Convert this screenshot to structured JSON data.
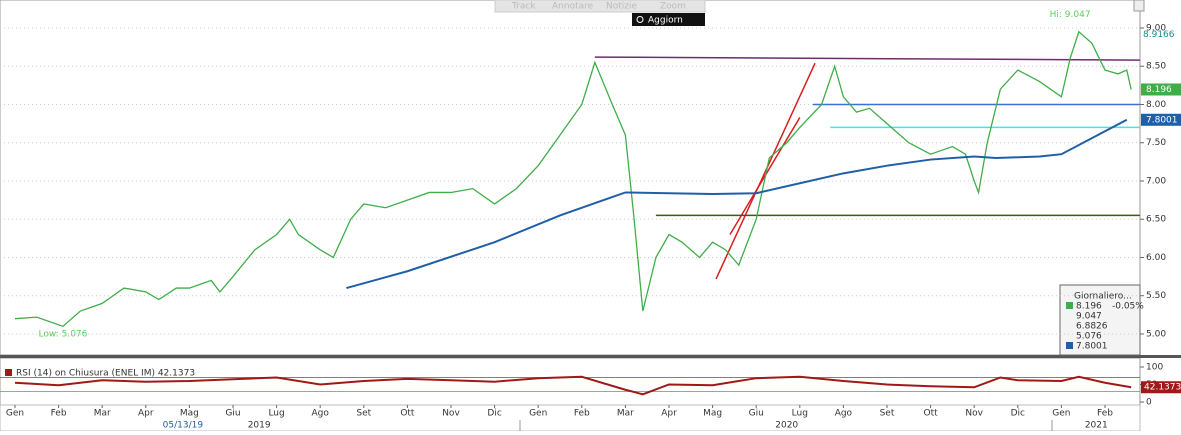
{
  "toolbar": {
    "buttons": [
      "Track",
      "Annotare",
      "Notizie",
      "Zoom"
    ],
    "refresh": "Aggiorn"
  },
  "chart_data": [
    {
      "type": "line",
      "xlim": [
        -0.344,
        25.803
      ],
      "ylim": [
        4.725,
        9.366
      ],
      "grid": true,
      "yticks": [
        {
          "value": 5,
          "label": "5.00"
        },
        {
          "value": 5.5,
          "label": "5.50"
        },
        {
          "value": 6,
          "label": "6.00"
        },
        {
          "value": 6.5,
          "label": "6.50"
        },
        {
          "value": 7,
          "label": "7.00"
        },
        {
          "value": 7.5,
          "label": "7.50"
        },
        {
          "value": 8,
          "label": "8.00"
        },
        {
          "value": 8.5,
          "label": "8.50"
        },
        {
          "value": 9,
          "label": "9.00"
        }
      ],
      "series": [
        {
          "name": "8.196",
          "color": "#3fae49",
          "x": [
            0,
            0.5,
            1.1,
            1.5,
            2,
            2.5,
            3,
            3.3,
            3.7,
            4,
            4.5,
            4.7,
            5,
            5.5,
            6,
            6.3,
            6.5,
            7,
            7.3,
            7.7,
            8,
            8.5,
            9,
            9.5,
            10,
            10.5,
            11,
            11.5,
            12,
            12.5,
            13,
            13.3,
            13.7,
            14,
            14.2,
            14.4,
            14.7,
            15,
            15.3,
            15.7,
            16,
            16.3,
            16.6,
            17,
            17.3,
            17.7,
            18,
            18.5,
            18.8,
            19,
            19.3,
            19.6,
            20,
            20.5,
            21,
            21.5,
            21.8,
            22,
            22.1,
            22.3,
            22.6,
            23,
            23.5,
            24,
            24.2,
            24.4,
            24.7,
            25,
            25.3,
            25.5,
            25.6
          ],
          "values": [
            5.2,
            5.22,
            5.1,
            5.3,
            5.4,
            5.6,
            5.55,
            5.45,
            5.6,
            5.6,
            5.7,
            5.55,
            5.75,
            6.1,
            6.3,
            6.5,
            6.3,
            6.1,
            6.0,
            6.5,
            6.7,
            6.65,
            6.75,
            6.85,
            6.85,
            6.9,
            6.7,
            6.9,
            7.2,
            7.6,
            8.0,
            8.55,
            8.0,
            7.6,
            6.5,
            5.3,
            6.0,
            6.3,
            6.2,
            6.0,
            6.2,
            6.1,
            5.9,
            6.5,
            7.3,
            7.5,
            7.7,
            8.0,
            8.5,
            8.1,
            7.9,
            7.95,
            7.75,
            7.5,
            7.35,
            7.45,
            7.35,
            7.0,
            6.85,
            7.5,
            8.2,
            8.45,
            8.3,
            8.1,
            8.6,
            8.95,
            8.8,
            8.45,
            8.4,
            8.45,
            8.196
          ]
        },
        {
          "name": "7.8001",
          "color": "#1f5fa8",
          "x": [
            7.6,
            9,
            11,
            12.5,
            13.5,
            14,
            15,
            16,
            17,
            18,
            19,
            20,
            21,
            22,
            22.5,
            23.5,
            24,
            24.5,
            25,
            25.5
          ],
          "values": [
            5.6,
            5.82,
            6.2,
            6.55,
            6.75,
            6.85,
            6.84,
            6.83,
            6.84,
            6.97,
            7.1,
            7.2,
            7.28,
            7.32,
            7.3,
            7.32,
            7.35,
            7.5,
            7.65,
            7.8
          ]
        }
      ],
      "trendlines": [
        {
          "x": [
            13.3,
            25.8
          ],
          "y": [
            8.62,
            8.58
          ],
          "color": "#6b2d6b"
        },
        {
          "x": [
            16.08,
            18.35
          ],
          "y": [
            5.72,
            8.54
          ],
          "color": "#d81e1e"
        },
        {
          "x": [
            16.4,
            18.0
          ],
          "y": [
            6.3,
            7.83
          ],
          "color": "#d81e1e"
        },
        {
          "x": [
            18.3,
            25.8
          ],
          "y": [
            8.0,
            8.0
          ],
          "color": "#3d6fd6"
        },
        {
          "x": [
            18.7,
            25.8
          ],
          "y": [
            7.7,
            7.7
          ],
          "color": "#3fe6e6"
        },
        {
          "x": [
            14.7,
            25.8
          ],
          "y": [
            6.55,
            6.55
          ],
          "color": "#3b5a12"
        }
      ],
      "annotations": [
        {
          "text": "Hi: 9.047",
          "x": 24.2,
          "y": 9.047
        },
        {
          "text": "Low: 5.076",
          "x": 1.1,
          "y": 5.076
        }
      ],
      "flags": [
        {
          "value": 8.9166,
          "color": "#1a8a8a"
        },
        {
          "value": 8.196,
          "color": "#3fae49"
        },
        {
          "value": 7.8001,
          "color": "#1f5fa8"
        }
      ],
      "legend": {
        "title": "Giornaliero...",
        "rows": [
          "8.196",
          "-0.05%",
          "9.047",
          "6.8826",
          "5.076",
          "7.8001"
        ]
      }
    },
    {
      "type": "line",
      "title": "RSI (14)  on Chiusura (ENEL IM)  42.1373",
      "xlim": [
        -0.344,
        25.803
      ],
      "ylim": [
        -8.6,
        125.7
      ],
      "yticks": [
        0,
        50,
        100
      ],
      "levels": [
        {
          "value": 70,
          "color": "#d81e1e"
        },
        {
          "value": 30,
          "color": "#3fae49"
        }
      ],
      "series": [
        {
          "name": "42.1373",
          "color": "#a01818",
          "x": [
            0,
            1,
            2,
            3,
            4,
            5,
            6,
            7,
            8,
            9,
            10,
            11,
            12,
            13,
            14,
            14.4,
            15,
            16,
            17,
            18,
            19,
            20,
            21,
            22,
            22.6,
            23,
            24,
            24.4,
            25,
            25.6
          ],
          "values": [
            55,
            48,
            62,
            58,
            60,
            65,
            70,
            50,
            60,
            66,
            62,
            58,
            68,
            72,
            35,
            22,
            50,
            48,
            68,
            72,
            60,
            50,
            45,
            42,
            70,
            62,
            60,
            72,
            55,
            42.1373
          ]
        }
      ],
      "xticks": [
        {
          "value": 0,
          "label": "Gen"
        },
        {
          "value": 1,
          "label": "Feb"
        },
        {
          "value": 2,
          "label": "Mar"
        },
        {
          "value": 3,
          "label": "Apr"
        },
        {
          "value": 4,
          "label": "Mag"
        },
        {
          "value": 5,
          "label": "Giu"
        },
        {
          "value": 6,
          "label": "Lug"
        },
        {
          "value": 7,
          "label": "Ago"
        },
        {
          "value": 8,
          "label": "Set"
        },
        {
          "value": 9,
          "label": "Ott"
        },
        {
          "value": 10,
          "label": "Nov"
        },
        {
          "value": 11,
          "label": "Dic"
        },
        {
          "value": 12,
          "label": "Gen"
        },
        {
          "value": 13,
          "label": "Feb"
        },
        {
          "value": 14,
          "label": "Mar"
        },
        {
          "value": 15,
          "label": "Apr"
        },
        {
          "value": 16,
          "label": "Mag"
        },
        {
          "value": 17,
          "label": "Giu"
        },
        {
          "value": 18,
          "label": "Lug"
        },
        {
          "value": 19,
          "label": "Ago"
        },
        {
          "value": 20,
          "label": "Set"
        },
        {
          "value": 21,
          "label": "Ott"
        },
        {
          "value": 22,
          "label": "Nov"
        },
        {
          "value": 23,
          "label": "Dic"
        },
        {
          "value": 24,
          "label": "Gen"
        },
        {
          "value": 25,
          "label": "Feb"
        }
      ],
      "xlabels2": [
        {
          "value": 3.85,
          "label": "05/13/19"
        },
        {
          "value": 5.6,
          "label": "2019"
        },
        {
          "value": 17.7,
          "label": "2020"
        },
        {
          "value": 24.8,
          "label": "2021"
        }
      ]
    }
  ]
}
